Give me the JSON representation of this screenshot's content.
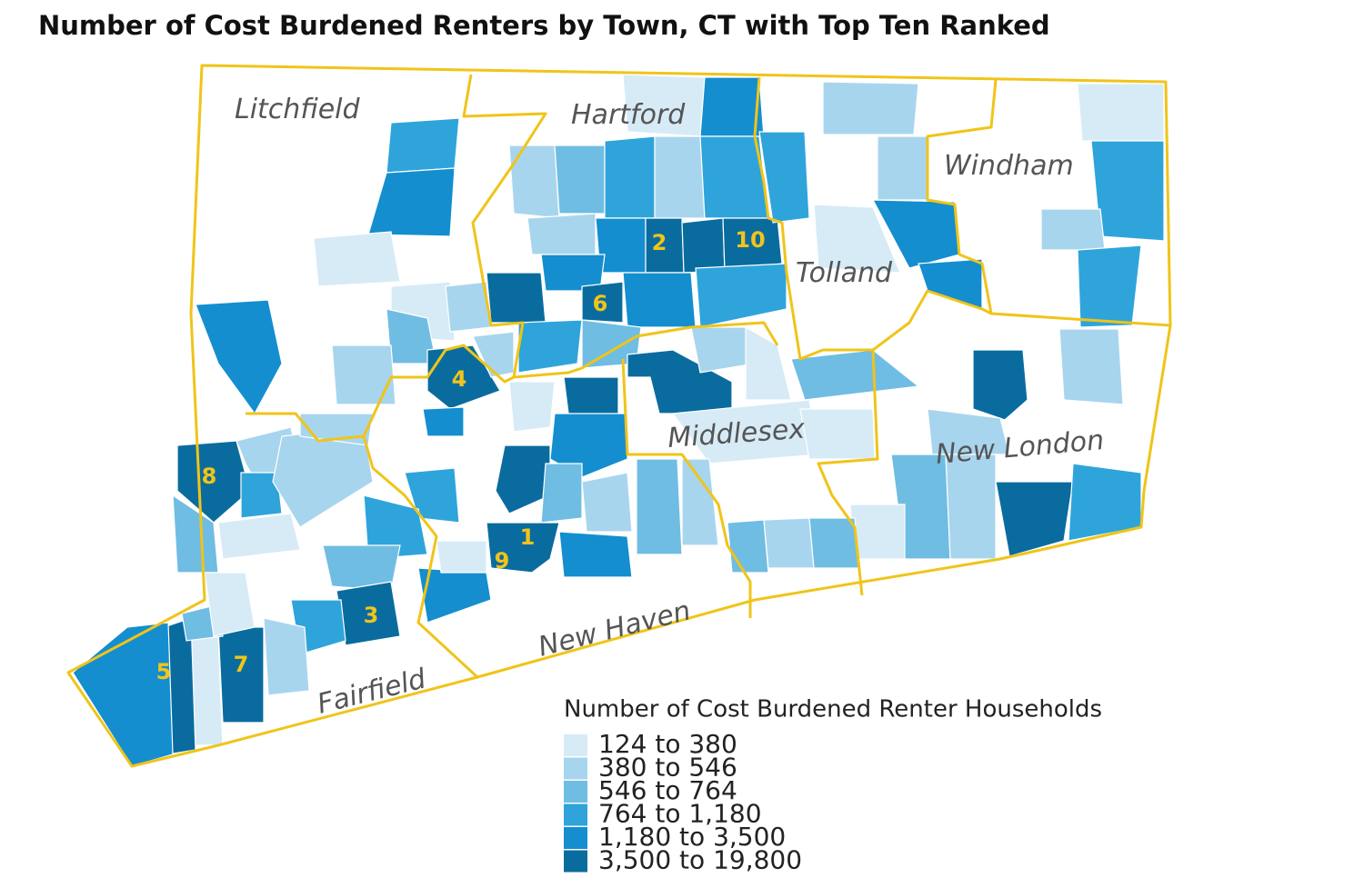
{
  "header": {
    "title": "Number of Cost Burdened Renters by Town, CT with Top Ten Ranked"
  },
  "map": {
    "county_labels": [
      "Litchfield",
      "Hartford",
      "Windham",
      "Tolland",
      "Middlesex",
      "New London",
      "New Haven",
      "Fairfield"
    ],
    "rank_labels": [
      1,
      2,
      3,
      4,
      5,
      6,
      7,
      8,
      9,
      10
    ]
  },
  "legend": {
    "title": "Number of Cost Burdened Renter Households",
    "items": [
      {
        "label": "124 to 380",
        "color": "#d6ebf6"
      },
      {
        "label": "380 to 546",
        "color": "#a8d5ee"
      },
      {
        "label": "546 to 764",
        "color": "#6fbde3"
      },
      {
        "label": "764 to 1,180",
        "color": "#2ea4db"
      },
      {
        "label": "1,180 to 3,500",
        "color": "#148ecf"
      },
      {
        "label": "3,500 to 19,800",
        "color": "#0a6c9e"
      }
    ]
  }
}
